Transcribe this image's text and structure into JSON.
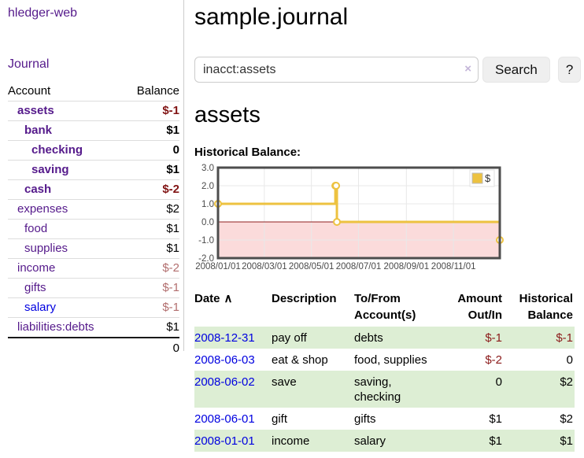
{
  "sidebar": {
    "app_title": "hledger-web",
    "nav": {
      "journal": "Journal"
    },
    "accounts": {
      "col_account": "Account",
      "col_balance": "Balance",
      "rows": [
        {
          "name": "assets",
          "balance": "$-1"
        },
        {
          "name": "bank",
          "balance": "$1"
        },
        {
          "name": "checking",
          "balance": "0"
        },
        {
          "name": "saving",
          "balance": "$1"
        },
        {
          "name": "cash",
          "balance": "$-2"
        },
        {
          "name": "expenses",
          "balance": "$2"
        },
        {
          "name": "food",
          "balance": "$1"
        },
        {
          "name": "supplies",
          "balance": "$1"
        },
        {
          "name": "income",
          "balance": "$-2"
        },
        {
          "name": "gifts",
          "balance": "$-1"
        },
        {
          "name": "salary",
          "balance": "$-1"
        },
        {
          "name": "liabilities:debts",
          "balance": "$1"
        }
      ],
      "total": "0"
    }
  },
  "main": {
    "journal_title": "sample.journal",
    "search": {
      "value": "inacct:assets",
      "clear": "×",
      "search_button": "Search",
      "help_button": "?"
    },
    "account_heading": "assets",
    "section_label": "Historical Balance:"
  },
  "chart_data": {
    "type": "line",
    "title": "Historical Balance",
    "series": [
      {
        "name": "$",
        "color": "#edc240",
        "style": "step",
        "points": [
          {
            "date": "2008-01-01",
            "day": 0,
            "value": 1
          },
          {
            "date": "2008-06-01",
            "day": 152,
            "value": 2
          },
          {
            "date": "2008-06-02",
            "day": 153,
            "value": 2
          },
          {
            "date": "2008-06-03",
            "day": 154,
            "value": 0
          },
          {
            "date": "2008-12-31",
            "day": 365,
            "value": -1
          }
        ]
      }
    ],
    "x_ticks": [
      {
        "day": 0,
        "label": "2008/01/01"
      },
      {
        "day": 60,
        "label": "2008/03/01"
      },
      {
        "day": 121,
        "label": "2008/05/01"
      },
      {
        "day": 182,
        "label": "2008/07/01"
      },
      {
        "day": 244,
        "label": "2008/09/01"
      },
      {
        "day": 305,
        "label": "2008/11/01"
      }
    ],
    "y_ticks": [
      "3.0",
      "2.0",
      "1.0",
      "0.0",
      "-1.0",
      "-2.0"
    ],
    "xlim_days": [
      0,
      365
    ],
    "ylim": [
      -2,
      3
    ],
    "grid": true,
    "legend": {
      "label": "$",
      "position": "top-right"
    },
    "negative_region_fill": "#fbdbdb",
    "zero_line_color": "#8f1f1f",
    "grid_color": "#e8e8e8",
    "border_color": "#4d4d4d"
  },
  "register": {
    "headers": {
      "date": "Date",
      "sort_indicator": "∧",
      "description": "Description",
      "account": "To/From Account(s)",
      "amount": "Amount Out/In",
      "balance": "Historical Balance"
    },
    "rows": [
      {
        "date": "2008-12-31",
        "description": "pay off",
        "account": "debts",
        "amount": "$-1",
        "balance": "$-1"
      },
      {
        "date": "2008-06-03",
        "description": "eat & shop",
        "account": "food, supplies",
        "amount": "$-2",
        "balance": "0"
      },
      {
        "date": "2008-06-02",
        "description": "save",
        "account": "saving, checking",
        "amount": "0",
        "balance": "$2"
      },
      {
        "date": "2008-06-01",
        "description": "gift",
        "account": "gifts",
        "amount": "$1",
        "balance": "$2"
      },
      {
        "date": "2008-01-01",
        "description": "income",
        "account": "salary",
        "amount": "$1",
        "balance": "$1"
      }
    ]
  }
}
